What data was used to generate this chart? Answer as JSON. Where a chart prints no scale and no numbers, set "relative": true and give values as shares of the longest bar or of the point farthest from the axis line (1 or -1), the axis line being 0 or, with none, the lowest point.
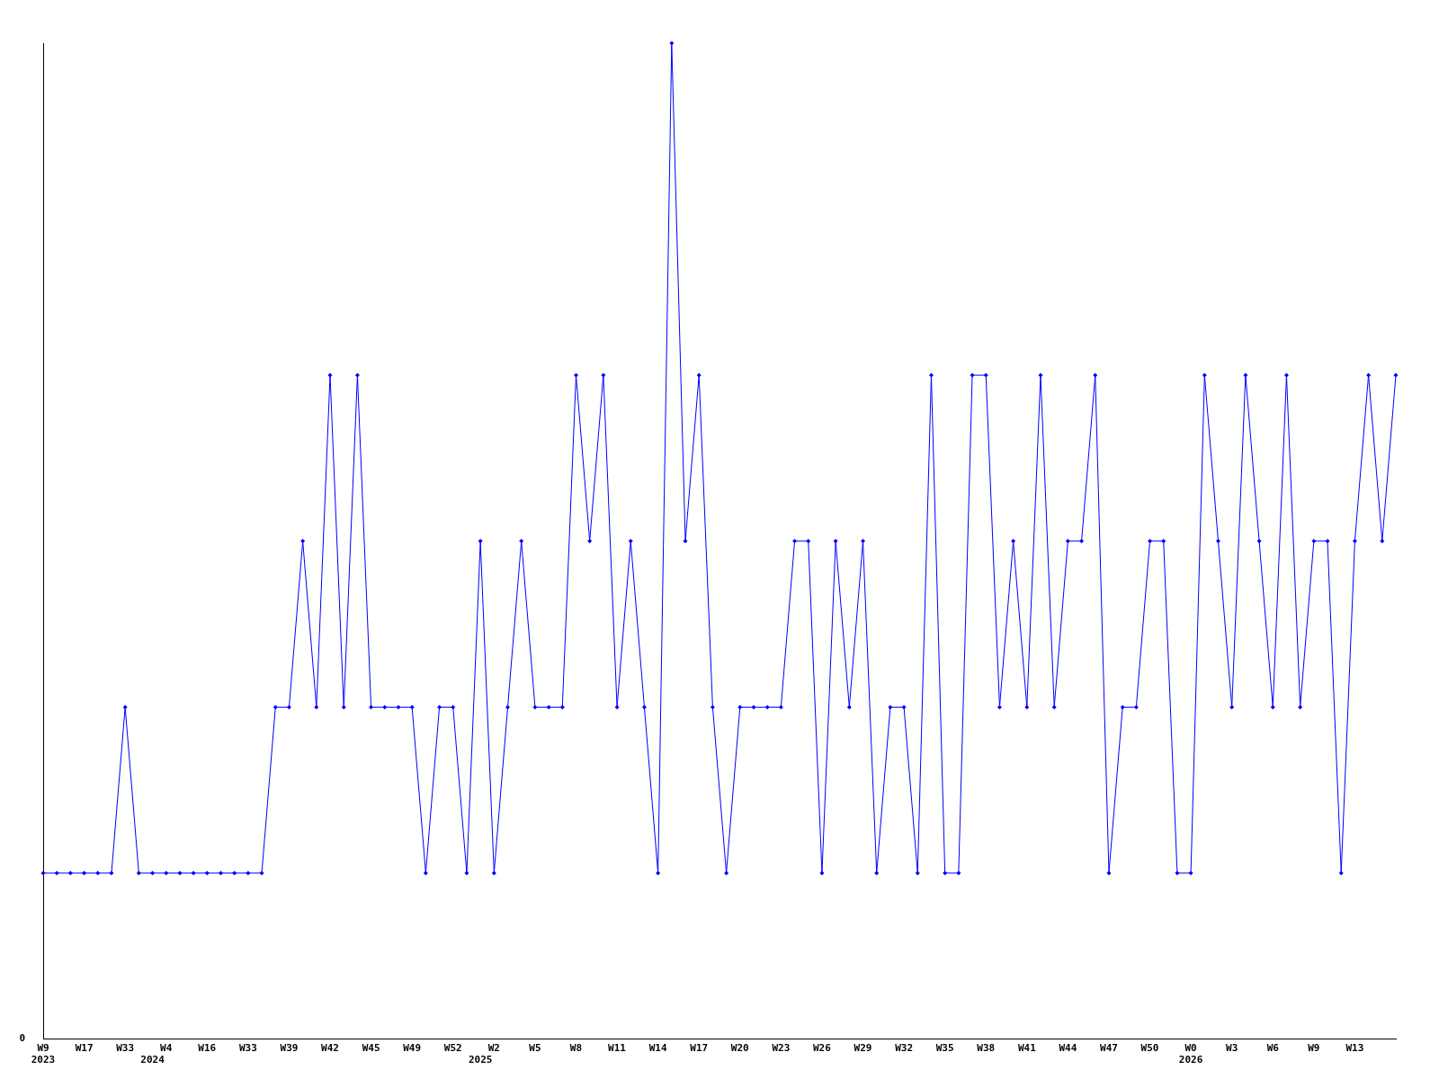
{
  "chart_data": {
    "type": "line",
    "relative": true,
    "marker": "diamond",
    "line_style": "solid",
    "grid": false,
    "legend": false,
    "categories": [
      "W9\n2023",
      null,
      null,
      "W17",
      null,
      null,
      "W33",
      null,
      "\n2024",
      "W4",
      null,
      null,
      "W16",
      null,
      null,
      "W33",
      null,
      null,
      "W39",
      null,
      null,
      "W42",
      null,
      null,
      "W45",
      null,
      null,
      "W49",
      null,
      null,
      "W52",
      null,
      "\n2025",
      "W2",
      null,
      null,
      "W5",
      null,
      null,
      "W8",
      null,
      null,
      "W11",
      null,
      null,
      "W14",
      null,
      null,
      "W17",
      null,
      null,
      "W20",
      null,
      null,
      "W23",
      null,
      null,
      "W26",
      null,
      null,
      "W29",
      null,
      null,
      "W32",
      null,
      null,
      "W35",
      null,
      null,
      "W38",
      null,
      null,
      "W41",
      null,
      null,
      "W44",
      null,
      null,
      "W47",
      null,
      null,
      "W50",
      null,
      null,
      "W0\n2026",
      null,
      null,
      "W3",
      null,
      null,
      "W6",
      null,
      null,
      "W9",
      null,
      null,
      "W13",
      null,
      null,
      null
    ],
    "series": [
      {
        "color": "#0000ff",
        "values": [
          0.1667,
          0.1667,
          0.1667,
          0.1667,
          0.1667,
          0.1667,
          0.3333,
          0.1667,
          0.1667,
          0.1667,
          0.1667,
          0.1667,
          0.1667,
          0.1667,
          0.1667,
          0.1667,
          0.1667,
          0.3333,
          0.3333,
          0.5,
          0.3333,
          0.6667,
          0.3333,
          0.6667,
          0.3333,
          0.3333,
          0.3333,
          0.3333,
          0.1667,
          0.3333,
          0.3333,
          0.1667,
          0.5,
          0.1667,
          0.3333,
          0.5,
          0.3333,
          0.3333,
          0.3333,
          0.6667,
          0.5,
          0.6667,
          0.3333,
          0.5,
          0.3333,
          0.1667,
          1,
          0.5,
          0.6667,
          0.3333,
          0.1667,
          0.3333,
          0.3333,
          0.3333,
          0.3333,
          0.5,
          0.5,
          0.1667,
          0.5,
          0.3333,
          0.5,
          0.1667,
          0.3333,
          0.3333,
          0.1667,
          0.6667,
          0.1667,
          0.1667,
          0.6667,
          0.6667,
          0.3333,
          0.5,
          0.3333,
          0.6667,
          0.3333,
          0.5,
          0.5,
          0.6667,
          0.1667,
          0.3333,
          0.3333,
          0.5,
          0.5,
          0.1667,
          0.1667,
          0.6667,
          0.5,
          0.3333,
          0.6667,
          0.5,
          0.3333,
          0.6667,
          0.3333,
          0.5,
          0.5,
          0.1667,
          0.5,
          0.6667,
          0.5,
          0.6667
        ]
      }
    ],
    "annotations": [
      "0"
    ]
  }
}
